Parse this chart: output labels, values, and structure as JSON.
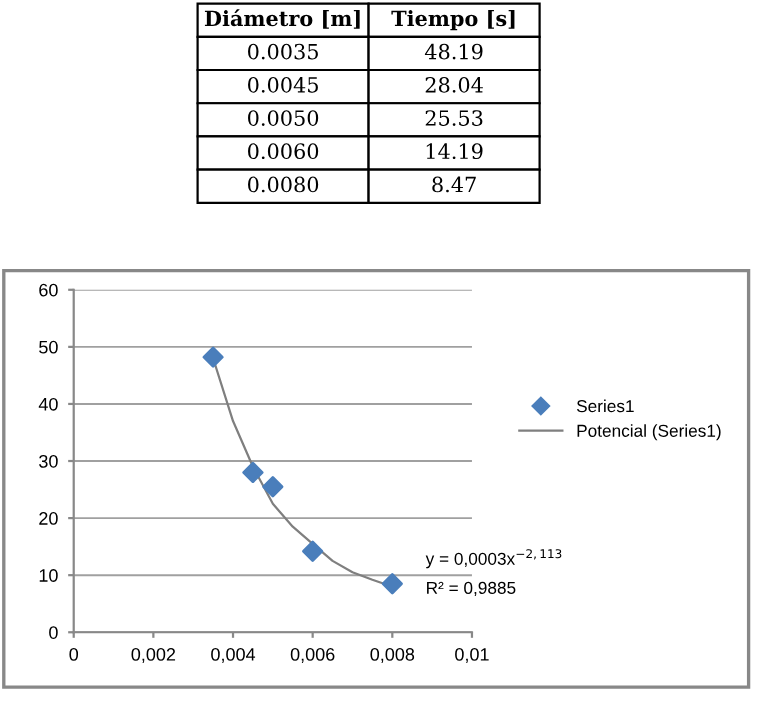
{
  "chart_data": [
    {
      "type": "other",
      "annotations": [
        "Diámetro [m]",
        "Tiempo [s]",
        "0.0035",
        "48.19",
        "0.0045",
        "28.04",
        "0.0050",
        "25.53",
        "0.0060",
        "14.19",
        "0.0080",
        "8.47"
      ]
    },
    {
      "type": "scatter",
      "x": [
        0.0035,
        0.0045,
        0.005,
        0.006,
        0.008
      ],
      "series": [
        {
          "name": "Series1",
          "color": "#4a7ebb",
          "values": [
            48.2,
            28,
            25.5,
            14.2,
            8.5
          ],
          "marker": "diamond"
        },
        {
          "name": "Potencial (Series1)",
          "type": "line",
          "color": "#7f7f7f",
          "x": [
            0.0035,
            0.004,
            0.0045,
            0.005,
            0.0055,
            0.006,
            0.0065,
            0.007,
            0.0075,
            0.008
          ],
          "values": [
            48,
            37,
            29,
            22.5,
            18.5,
            15.5,
            12.5,
            10.5,
            9.2,
            8
          ]
        }
      ],
      "annotations": [
        {
          "text": "y = 0,0003x$^{−2,113}$",
          "x": 0.008,
          "y": 8
        },
        {
          "text": "R² = 0,9885",
          "x": 0.008,
          "y": 8
        }
      ],
      "xlim": [
        0,
        0.01
      ],
      "xticks": [
        0,
        {
          "value": 0.002,
          "label": "0,002"
        },
        {
          "value": 0.004,
          "label": "0,004"
        },
        {
          "value": 0.006,
          "label": "0,006"
        },
        {
          "value": 0.008,
          "label": "0,008"
        },
        {
          "value": 0.01,
          "label": "0,01"
        }
      ],
      "ylim": [
        0,
        60
      ],
      "yticks": [
        0,
        10,
        20,
        30,
        40,
        50,
        60
      ],
      "grid": "y",
      "legend": "right"
    }
  ]
}
